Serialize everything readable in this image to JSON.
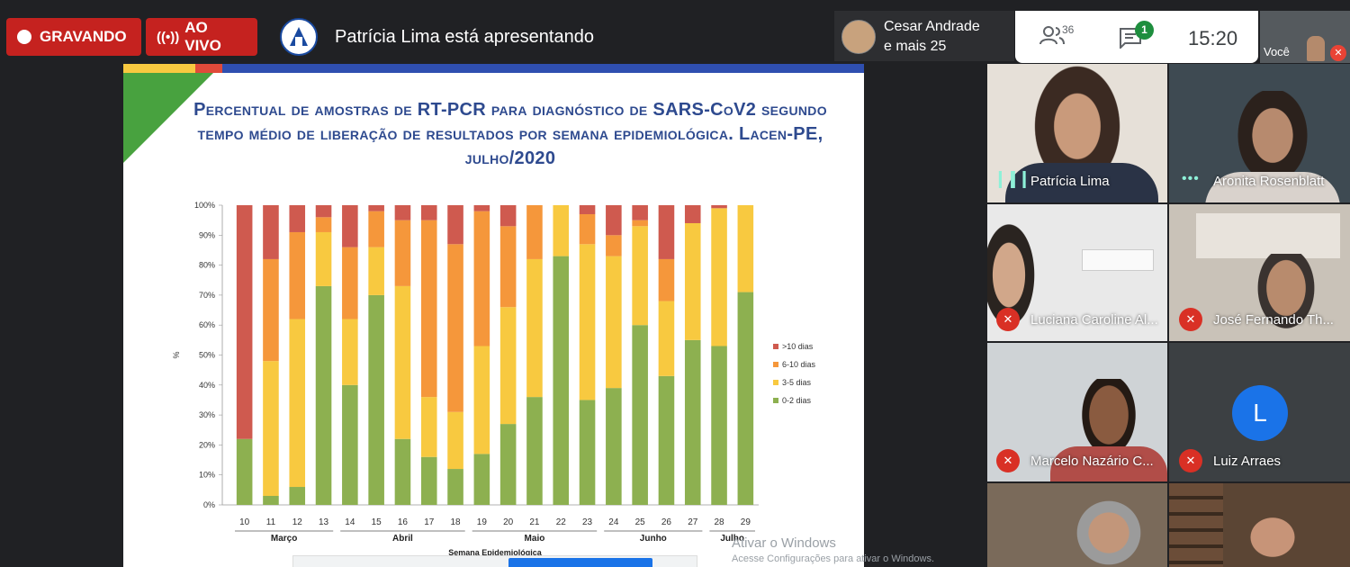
{
  "topbar": {
    "recording_label": "GRAVANDO",
    "live_label": "AO VIVO",
    "presenter_text": "Patrícia Lima está apresentando",
    "people_name": "Cesar Andrade",
    "people_more": "e mais 25",
    "participants_count": "36",
    "chat_badge": "1",
    "clock": "15:20",
    "self_label": "Você",
    "icons": {
      "record": "record-dot-icon",
      "live": "broadcast-icon",
      "participants": "people-icon",
      "chat": "chat-icon",
      "mic_off": "mic-off-icon"
    }
  },
  "slide": {
    "title": "Percentual de amostras de RT-PCR para diagnóstico de SARS-CoV2 segundo tempo médio de liberação de resultados por semana epidemiológica. Lacen-PE, julho/2020",
    "watermark_title": "Ativar o Windows",
    "watermark_sub": "Acesse Configurações para ativar o Windows."
  },
  "chart_data": {
    "type": "bar",
    "stacked": true,
    "title": "",
    "xlabel": "Semana Epidemiológica",
    "ylabel": "%",
    "ylim": [
      0,
      100
    ],
    "y_ticks": [
      "0%",
      "10%",
      "20%",
      "30%",
      "40%",
      "50%",
      "60%",
      "70%",
      "80%",
      "90%",
      "100%"
    ],
    "categories": [
      "10",
      "11",
      "12",
      "13",
      "14",
      "15",
      "16",
      "17",
      "18",
      "19",
      "20",
      "21",
      "22",
      "23",
      "24",
      "25",
      "26",
      "27",
      "28",
      "29"
    ],
    "month_groups": [
      {
        "label": "Março",
        "from": 10,
        "to": 13
      },
      {
        "label": "Abril",
        "from": 14,
        "to": 18
      },
      {
        "label": "Maio",
        "from": 19,
        "to": 23
      },
      {
        "label": "Junho",
        "from": 24,
        "to": 27
      },
      {
        "label": "Julho",
        "from": 28,
        "to": 29
      }
    ],
    "series": [
      {
        "name": "0-2 dias",
        "color": "#8db050",
        "values": [
          22,
          3,
          6,
          73,
          40,
          70,
          22,
          16,
          12,
          17,
          27,
          36,
          83,
          35,
          39,
          60,
          43,
          55,
          53,
          71
        ]
      },
      {
        "name": "3-5 dias",
        "color": "#f8c940",
        "values": [
          0,
          45,
          56,
          18,
          22,
          16,
          51,
          20,
          19,
          36,
          39,
          46,
          17,
          52,
          44,
          33,
          25,
          39,
          46,
          29
        ]
      },
      {
        "name": "6-10 dias",
        "color": "#f5973b",
        "values": [
          0,
          34,
          29,
          5,
          24,
          12,
          22,
          59,
          56,
          45,
          27,
          18,
          0,
          10,
          7,
          2,
          14,
          0,
          0,
          0
        ]
      },
      {
        "name": ">10 dias",
        "color": "#cf5a4f",
        "values": [
          78,
          18,
          9,
          4,
          14,
          2,
          5,
          5,
          13,
          2,
          7,
          0,
          0,
          3,
          10,
          5,
          18,
          6,
          1,
          0
        ]
      }
    ],
    "legend_order": [
      ">10 dias",
      "6-10 dias",
      "3-5 dias",
      "0-2 dias"
    ],
    "legend_position": "right",
    "grid": false
  },
  "participants": [
    {
      "name": "Patrícia Lima",
      "muted": false,
      "speaking": true
    },
    {
      "name": "Aronita Rosenblatt",
      "muted": false,
      "speaking": true
    },
    {
      "name": "Luciana Caroline Al...",
      "muted": true
    },
    {
      "name": "José Fernando Th...",
      "muted": true
    },
    {
      "name": "Marcelo Nazário C...",
      "muted": true
    },
    {
      "name": "Luiz Arraes",
      "muted": true,
      "initial": "L"
    }
  ]
}
